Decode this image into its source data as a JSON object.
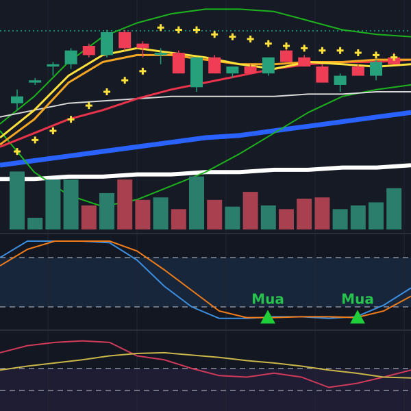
{
  "chart_data": [
    {
      "type": "candlestick",
      "ylim": [
        0,
        100
      ],
      "up_color": "#26a17b",
      "down_color": "#ef3d55",
      "open": [
        55,
        64,
        71,
        72,
        80,
        76,
        86,
        81,
        76,
        77,
        62,
        75,
        68,
        71,
        68,
        78,
        75,
        71,
        63,
        71,
        67,
        75
      ],
      "high": [
        61,
        66,
        73,
        79,
        81,
        87,
        87,
        82,
        79,
        78,
        75,
        76,
        71,
        72,
        75,
        80,
        76,
        72,
        68,
        72,
        74,
        77
      ],
      "low": [
        52,
        63,
        67,
        70,
        75,
        75,
        78,
        75,
        72,
        68,
        60,
        68,
        66,
        68,
        67,
        73,
        71,
        64,
        60,
        67,
        65,
        72
      ],
      "close": [
        58,
        65,
        72,
        78,
        76,
        86,
        79,
        79,
        77,
        68,
        75,
        68,
        71,
        68,
        75,
        73,
        71,
        64,
        67,
        67,
        73,
        72
      ],
      "lines": [
        {
          "color": "#ffffff",
          "values": [
            22,
            22,
            23,
            23,
            24,
            24,
            25,
            25,
            26,
            26,
            27,
            27,
            28
          ]
        },
        {
          "color": "#2962ff",
          "values": [
            28,
            30,
            32,
            34,
            36,
            38,
            40,
            41,
            43,
            45,
            47,
            49,
            51
          ]
        },
        {
          "color": "#1db31d",
          "values": [
            43,
            25,
            15,
            10,
            13,
            19,
            25,
            33,
            42,
            51,
            58,
            61,
            63
          ]
        },
        {
          "color": "#1db31d",
          "values": [
            46,
            58,
            73,
            84,
            90,
            94,
            96,
            96,
            95,
            91,
            87,
            85,
            84
          ]
        },
        {
          "color": "#e8334a",
          "values": [
            36,
            42,
            48,
            52,
            57,
            61,
            64,
            67,
            70,
            72,
            73,
            73,
            74
          ]
        },
        {
          "color": "#d9d9d9",
          "values": [
            49,
            52,
            55,
            56,
            57,
            58,
            58,
            58,
            58,
            59,
            59,
            60,
            60
          ]
        },
        {
          "color": "#f5a623",
          "values": [
            37,
            48,
            64,
            73,
            76,
            76,
            74,
            72,
            72,
            73,
            73,
            74,
            74
          ]
        },
        {
          "color": "#ffe23b",
          "values": [
            40,
            52,
            67,
            76,
            79,
            77,
            75,
            72,
            70,
            73,
            72,
            71,
            72
          ]
        }
      ],
      "markers": {
        "color": "#ffe23b",
        "values": [
          34,
          39,
          43,
          48,
          54,
          60,
          65,
          69,
          88,
          87,
          87,
          85,
          84,
          83,
          81,
          80,
          79,
          78,
          78,
          77,
          76,
          75
        ]
      }
    },
    {
      "type": "bar",
      "ylim": [
        0,
        100
      ],
      "values": [
        94,
        19,
        81,
        81,
        39,
        59,
        81,
        48,
        52,
        33,
        86,
        48,
        37,
        61,
        39,
        33,
        50,
        52,
        33,
        39,
        44,
        67
      ],
      "colors": [
        "#2b7d6c",
        "#2b7d6c",
        "#2b7d6c",
        "#2b7d6c",
        "#a8404f",
        "#2b7d6c",
        "#a8404f",
        "#a8404f",
        "#2b7d6c",
        "#a8404f",
        "#2b7d6c",
        "#a8404f",
        "#2b7d6c",
        "#a8404f",
        "#2b7d6c",
        "#a8404f",
        "#a8404f",
        "#a8404f",
        "#2b7d6c",
        "#2b7d6c",
        "#2b7d6c",
        "#2b7d6c"
      ]
    },
    {
      "type": "line",
      "ylim": [
        0,
        100
      ],
      "yticks": [
        20,
        80
      ],
      "series": [
        {
          "color": "#3d8fe0",
          "values": [
            80,
            100,
            100,
            100,
            98,
            77,
            45,
            20,
            6,
            6,
            8,
            8,
            6,
            8,
            22,
            43
          ]
        },
        {
          "color": "#f07c1a",
          "values": [
            70,
            90,
            100,
            100,
            100,
            88,
            65,
            40,
            15,
            7,
            7,
            8,
            8,
            7,
            15,
            33
          ]
        }
      ],
      "annotations": [
        {
          "label": "Mua",
          "value": 8
        },
        {
          "label": "Mua",
          "value": 8
        }
      ]
    },
    {
      "type": "line",
      "ylim": [
        0,
        100
      ],
      "yticks": [
        26,
        54
      ],
      "series": [
        {
          "color": "#d23a5a",
          "values": [
            74,
            83,
            87,
            89,
            87,
            70,
            65,
            54,
            45,
            43,
            48,
            43,
            30,
            35,
            43,
            52
          ]
        },
        {
          "color": "#c9b74a",
          "values": [
            52,
            57,
            61,
            65,
            70,
            73,
            74,
            71,
            68,
            64,
            61,
            57,
            52,
            48,
            43,
            42
          ]
        }
      ]
    }
  ]
}
